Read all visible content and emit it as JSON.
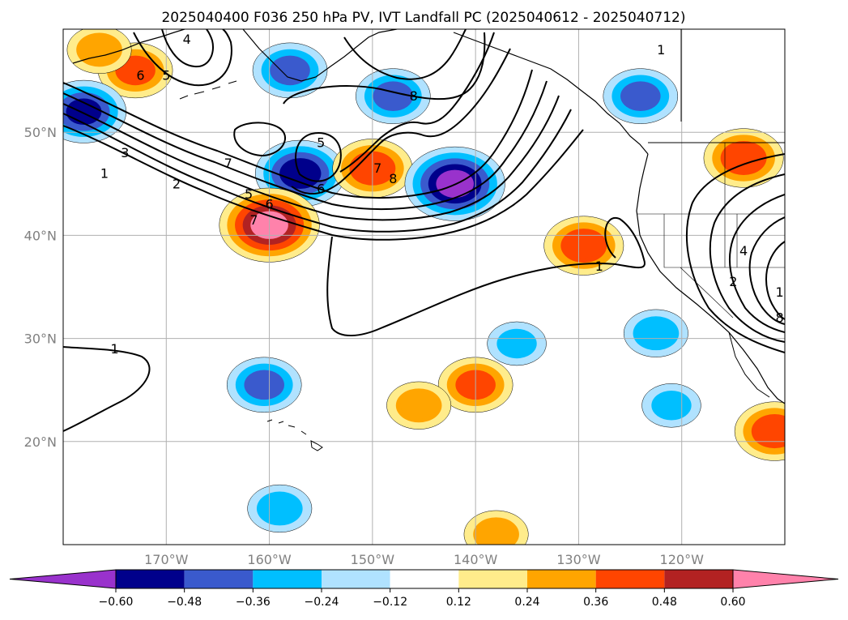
{
  "chart_data": {
    "type": "map-contour",
    "title": "2025040400 F036 250 hPa PV, IVT Landfall PC (2025040612 - 2025040712)",
    "xaxis": {
      "ticks": [
        {
          "lon": -170,
          "label": "170°W"
        },
        {
          "lon": -160,
          "label": "160°W"
        },
        {
          "lon": -150,
          "label": "150°W"
        },
        {
          "lon": -140,
          "label": "140°W"
        },
        {
          "lon": -130,
          "label": "130°W"
        },
        {
          "lon": -120,
          "label": "120°W"
        }
      ],
      "range": [
        -180,
        -110
      ]
    },
    "yaxis": {
      "ticks": [
        {
          "lat": 50,
          "label": "50°N"
        },
        {
          "lat": 40,
          "label": "40°N"
        },
        {
          "lat": 30,
          "label": "30°N"
        },
        {
          "lat": 20,
          "label": "20°N"
        }
      ],
      "range": [
        10,
        60
      ]
    },
    "grid": true,
    "colorbar": {
      "orientation": "horizontal",
      "extend": "both",
      "levels": [
        -0.6,
        -0.48,
        -0.36,
        -0.24,
        -0.12,
        0.12,
        0.24,
        0.36,
        0.48,
        0.6
      ],
      "tick_labels": [
        "−0.60",
        "−0.48",
        "−0.36",
        "−0.24",
        "−0.12",
        "0.12",
        "0.24",
        "0.36",
        "0.48",
        "0.60"
      ],
      "colors": [
        "#9932cc",
        "#00008b",
        "#3a5acd",
        "#00bfff",
        "#b0e2ff",
        "#ffffff",
        "#ffec8b",
        "#ffa500",
        "#ff4500",
        "#b22222",
        "#ff82ab"
      ]
    },
    "pv_contours": {
      "color": "#000000",
      "labels": [
        {
          "lon": -168,
          "lat": 59,
          "text": "4"
        },
        {
          "lon": -172.5,
          "lat": 55.5,
          "text": "6"
        },
        {
          "lon": -170,
          "lat": 55.5,
          "text": "5"
        },
        {
          "lon": -146,
          "lat": 53.5,
          "text": "8"
        },
        {
          "lon": -174,
          "lat": 48,
          "text": "3"
        },
        {
          "lon": -176,
          "lat": 46,
          "text": "1"
        },
        {
          "lon": -169,
          "lat": 45,
          "text": "2"
        },
        {
          "lon": -164,
          "lat": 47,
          "text": "7"
        },
        {
          "lon": -162,
          "lat": 44,
          "text": "5"
        },
        {
          "lon": -160,
          "lat": 43,
          "text": "6"
        },
        {
          "lon": -161.5,
          "lat": 41.5,
          "text": "7"
        },
        {
          "lon": -155,
          "lat": 49,
          "text": "5"
        },
        {
          "lon": -155,
          "lat": 44.5,
          "text": "6"
        },
        {
          "lon": -149.5,
          "lat": 46.5,
          "text": "7"
        },
        {
          "lon": -148,
          "lat": 45.5,
          "text": "8"
        },
        {
          "lon": -128,
          "lat": 37,
          "text": "1"
        },
        {
          "lon": -175,
          "lat": 29,
          "text": "1"
        },
        {
          "lon": -122,
          "lat": 58,
          "text": "1"
        },
        {
          "lon": -114,
          "lat": 38.5,
          "text": "4"
        },
        {
          "lon": -115,
          "lat": 35.5,
          "text": "2"
        },
        {
          "lon": -110.5,
          "lat": 34.5,
          "text": "1"
        },
        {
          "lon": -110.5,
          "lat": 32,
          "text": "8"
        }
      ]
    },
    "ivt_pc_regions": [
      {
        "lon": -173,
        "lat": 56,
        "value": 0.4
      },
      {
        "lon": -176.5,
        "lat": 58,
        "value": 0.3
      },
      {
        "lon": -178,
        "lat": 52,
        "value": -0.5
      },
      {
        "lon": -158,
        "lat": 56,
        "value": -0.4
      },
      {
        "lon": -157,
        "lat": 46,
        "value": -0.55
      },
      {
        "lon": -148,
        "lat": 53.5,
        "value": -0.4
      },
      {
        "lon": -160,
        "lat": 41,
        "value": 0.65
      },
      {
        "lon": -150,
        "lat": 46.5,
        "value": 0.45
      },
      {
        "lon": -142,
        "lat": 45,
        "value": -0.65
      },
      {
        "lon": -129.5,
        "lat": 39,
        "value": 0.45
      },
      {
        "lon": -124,
        "lat": 53.5,
        "value": -0.4
      },
      {
        "lon": -114,
        "lat": 47.5,
        "value": 0.45
      },
      {
        "lon": -122.5,
        "lat": 30.5,
        "value": -0.3
      },
      {
        "lon": -111,
        "lat": 21,
        "value": 0.45
      },
      {
        "lon": -121,
        "lat": 23.5,
        "value": -0.25
      },
      {
        "lon": -160.5,
        "lat": 25.5,
        "value": -0.4
      },
      {
        "lon": -140,
        "lat": 25.5,
        "value": 0.4
      },
      {
        "lon": -145.5,
        "lat": 23.5,
        "value": 0.3
      },
      {
        "lon": -136,
        "lat": 29.5,
        "value": -0.25
      },
      {
        "lon": -159,
        "lat": 13.5,
        "value": -0.3
      },
      {
        "lon": -138,
        "lat": 11,
        "value": 0.3
      }
    ]
  }
}
